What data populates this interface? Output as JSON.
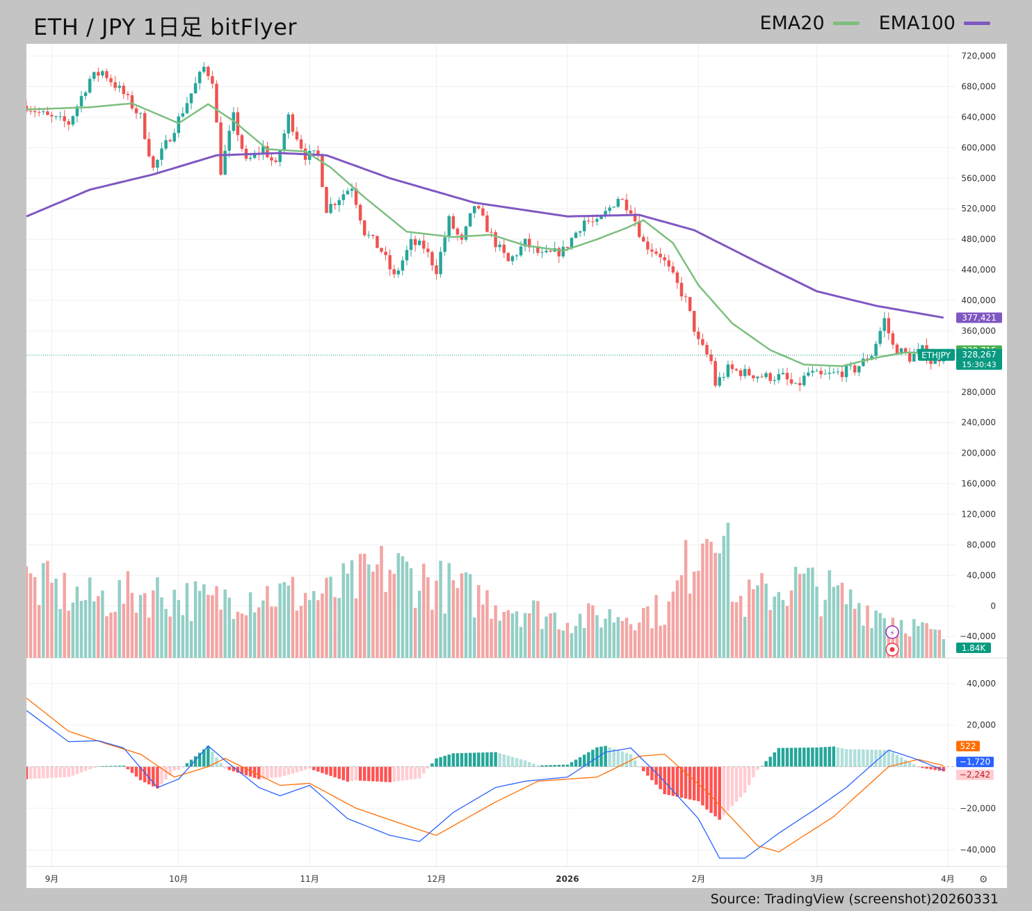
{
  "header": {
    "title": "ETH / JPY 1日足 bitFlyer",
    "legend": [
      {
        "label": "EMA20",
        "color": "#7cbf7f"
      },
      {
        "label": "EMA100",
        "color": "#7f57c2"
      }
    ]
  },
  "footer": {
    "source": "Source: TradingView (screenshot)20260331"
  },
  "colors": {
    "up": "#26a69a",
    "down": "#ef5350",
    "volume_up": "#93cfc6",
    "volume_down": "#f3a5a3",
    "macd": "#2962ff",
    "signal": "#ff6d00"
  },
  "chart_data": [
    {
      "type": "candlestick",
      "symbol": "ETHJPY",
      "x_range": [
        "2025-08-26",
        "2026-04-15"
      ],
      "xaxis_ticks": [
        {
          "date": "2025-09-01",
          "label": "9月"
        },
        {
          "date": "2025-10-01",
          "label": "10月"
        },
        {
          "date": "2025-11-01",
          "label": "11月"
        },
        {
          "date": "2025-12-01",
          "label": "12月"
        },
        {
          "date": "2026-01-01",
          "label": "2026"
        },
        {
          "date": "2026-02-01",
          "label": "2月"
        },
        {
          "date": "2026-03-01",
          "label": "3月"
        },
        {
          "date": "2026-04-01",
          "label": "4月"
        }
      ],
      "yaxis_ticks": [
        720000,
        680000,
        640000,
        600000,
        560000,
        520000,
        480000,
        440000,
        400000,
        360000,
        280000,
        240000,
        200000,
        160000,
        120000,
        80000,
        40000,
        0,
        -40000
      ],
      "ylim": [
        -68000,
        736000
      ],
      "close_keypoints": [
        [
          "2025-08-26",
          655000
        ],
        [
          "2025-08-31",
          640000
        ],
        [
          "2025-09-05",
          632000
        ],
        [
          "2025-09-10",
          690000
        ],
        [
          "2025-09-13",
          700000
        ],
        [
          "2025-09-18",
          670000
        ],
        [
          "2025-09-22",
          640000
        ],
        [
          "2025-09-25",
          572000
        ],
        [
          "2025-09-29",
          615000
        ],
        [
          "2025-10-03",
          660000
        ],
        [
          "2025-10-07",
          705000
        ],
        [
          "2025-10-09",
          690000
        ],
        [
          "2025-10-11",
          570000
        ],
        [
          "2025-10-14",
          640000
        ],
        [
          "2025-10-17",
          580000
        ],
        [
          "2025-10-21",
          600000
        ],
        [
          "2025-10-24",
          575000
        ],
        [
          "2025-10-27",
          640000
        ],
        [
          "2025-10-31",
          590000
        ],
        [
          "2025-11-03",
          590000
        ],
        [
          "2025-11-05",
          520000
        ],
        [
          "2025-11-09",
          540000
        ],
        [
          "2025-11-11",
          550000
        ],
        [
          "2025-11-14",
          490000
        ],
        [
          "2025-11-18",
          465000
        ],
        [
          "2025-11-21",
          430000
        ],
        [
          "2025-11-25",
          475000
        ],
        [
          "2025-11-28",
          470000
        ],
        [
          "2025-12-01",
          440000
        ],
        [
          "2025-12-04",
          505000
        ],
        [
          "2025-12-07",
          475000
        ],
        [
          "2025-12-10",
          525000
        ],
        [
          "2025-12-15",
          475000
        ],
        [
          "2025-12-18",
          450000
        ],
        [
          "2025-12-22",
          475000
        ],
        [
          "2025-12-26",
          458000
        ],
        [
          "2025-12-31",
          465000
        ],
        [
          "2026-01-05",
          505000
        ],
        [
          "2026-01-08",
          500000
        ],
        [
          "2026-01-13",
          535000
        ],
        [
          "2026-01-16",
          520000
        ],
        [
          "2026-01-19",
          475000
        ],
        [
          "2026-01-23",
          460000
        ],
        [
          "2026-01-26",
          430000
        ],
        [
          "2026-01-29",
          400000
        ],
        [
          "2026-02-01",
          345000
        ],
        [
          "2026-02-04",
          320000
        ],
        [
          "2026-02-05",
          290000
        ],
        [
          "2026-02-08",
          310000
        ],
        [
          "2026-02-12",
          305000
        ],
        [
          "2026-02-17",
          300000
        ],
        [
          "2026-02-21",
          300000
        ],
        [
          "2026-02-24",
          285000
        ],
        [
          "2026-02-27",
          305000
        ],
        [
          "2026-03-02",
          300000
        ],
        [
          "2026-03-06",
          305000
        ],
        [
          "2026-03-10",
          310000
        ],
        [
          "2026-03-14",
          330000
        ],
        [
          "2026-03-17",
          375000
        ],
        [
          "2026-03-19",
          340000
        ],
        [
          "2026-03-23",
          325000
        ],
        [
          "2026-03-26",
          335000
        ],
        [
          "2026-03-28",
          320000
        ],
        [
          "2026-03-31",
          328267
        ]
      ],
      "ema20_keypoints": [
        [
          "2025-08-26",
          650000
        ],
        [
          "2025-09-10",
          653000
        ],
        [
          "2025-09-20",
          658000
        ],
        [
          "2025-10-01",
          632000
        ],
        [
          "2025-10-08",
          657000
        ],
        [
          "2025-10-14",
          635000
        ],
        [
          "2025-10-22",
          598000
        ],
        [
          "2025-10-31",
          595000
        ],
        [
          "2025-11-06",
          574000
        ],
        [
          "2025-11-14",
          535000
        ],
        [
          "2025-11-24",
          490000
        ],
        [
          "2025-12-05",
          483000
        ],
        [
          "2025-12-14",
          486000
        ],
        [
          "2025-12-22",
          472000
        ],
        [
          "2025-12-31",
          465000
        ],
        [
          "2026-01-08",
          480000
        ],
        [
          "2026-01-15",
          495000
        ],
        [
          "2026-01-19",
          505000
        ],
        [
          "2026-01-26",
          475000
        ],
        [
          "2026-02-01",
          420000
        ],
        [
          "2026-02-09",
          370000
        ],
        [
          "2026-02-18",
          335000
        ],
        [
          "2026-02-26",
          316000
        ],
        [
          "2026-03-07",
          314000
        ],
        [
          "2026-03-15",
          325000
        ],
        [
          "2026-03-22",
          332000
        ],
        [
          "2026-03-31",
          330715
        ]
      ],
      "ema100_keypoints": [
        [
          "2025-08-26",
          510000
        ],
        [
          "2025-09-10",
          545000
        ],
        [
          "2025-09-25",
          565000
        ],
        [
          "2025-10-10",
          590000
        ],
        [
          "2025-10-25",
          593000
        ],
        [
          "2025-11-05",
          590000
        ],
        [
          "2025-11-20",
          560000
        ],
        [
          "2025-12-10",
          528000
        ],
        [
          "2026-01-01",
          510000
        ],
        [
          "2026-01-18",
          512000
        ],
        [
          "2026-01-31",
          492000
        ],
        [
          "2026-02-15",
          450000
        ],
        [
          "2026-03-01",
          412000
        ],
        [
          "2026-03-15",
          393000
        ],
        [
          "2026-03-31",
          377421
        ]
      ],
      "price_labels": [
        {
          "label": "",
          "value": "377,421",
          "price": 377421,
          "color": "#7e57c2"
        },
        {
          "label": "",
          "value": "330,715",
          "price": 330715,
          "color": "#4caf50"
        },
        {
          "label": "ETHJPY",
          "value": "328,267",
          "sub": "15:30:43",
          "price": 328267,
          "color": "#089981"
        }
      ],
      "volume": {
        "current_label": "1.84K",
        "keypoints": [
          [
            "2025-08-26",
            110000
          ],
          [
            "2025-09-10",
            85000
          ],
          [
            "2025-09-25",
            95000
          ],
          [
            "2025-10-09",
            80000
          ],
          [
            "2025-10-15",
            95000
          ],
          [
            "2025-11-05",
            90000
          ],
          [
            "2025-11-20",
            130000
          ],
          [
            "2025-12-10",
            90000
          ],
          [
            "2026-01-01",
            55000
          ],
          [
            "2026-01-25",
            70000
          ],
          [
            "2026-02-03",
            200000
          ],
          [
            "2026-02-05",
            240000
          ],
          [
            "2026-02-10",
            80000
          ],
          [
            "2026-02-25",
            110000
          ],
          [
            "2026-03-10",
            80000
          ],
          [
            "2026-03-31",
            30000
          ]
        ]
      }
    },
    {
      "type": "line",
      "name": "MACD",
      "ylim": [
        -48000,
        52000
      ],
      "yaxis_ticks": [
        40000,
        20000,
        -20000,
        -40000
      ],
      "labels": [
        {
          "value": "522",
          "y": 522,
          "color": "#ff6d00"
        },
        {
          "value": "−1,720",
          "y": -1720,
          "color": "#2962ff"
        },
        {
          "value": "−2,242",
          "y": -2242,
          "color": "#ffcdd2",
          "text_color": "#b71c1c"
        }
      ],
      "macd_keypoints": [
        [
          "2025-08-26",
          27000
        ],
        [
          "2025-09-05",
          12000
        ],
        [
          "2025-09-12",
          12500
        ],
        [
          "2025-09-18",
          9000
        ],
        [
          "2025-09-26",
          -10000
        ],
        [
          "2025-10-01",
          -6000
        ],
        [
          "2025-10-08",
          10000
        ],
        [
          "2025-10-12",
          3000
        ],
        [
          "2025-10-20",
          -10000
        ],
        [
          "2025-10-25",
          -14000
        ],
        [
          "2025-11-01",
          -9000
        ],
        [
          "2025-11-10",
          -25000
        ],
        [
          "2025-11-20",
          -33000
        ],
        [
          "2025-11-27",
          -36000
        ],
        [
          "2025-12-05",
          -22000
        ],
        [
          "2025-12-15",
          -10000
        ],
        [
          "2025-12-22",
          -7000
        ],
        [
          "2026-01-01",
          -5000
        ],
        [
          "2026-01-10",
          7000
        ],
        [
          "2026-01-16",
          9000
        ],
        [
          "2026-01-23",
          -5000
        ],
        [
          "2026-02-01",
          -25000
        ],
        [
          "2026-02-06",
          -44000
        ],
        [
          "2026-02-12",
          -44000
        ],
        [
          "2026-02-20",
          -32000
        ],
        [
          "2026-03-01",
          -20000
        ],
        [
          "2026-03-08",
          -10000
        ],
        [
          "2026-03-18",
          8000
        ],
        [
          "2026-03-24",
          4000
        ],
        [
          "2026-03-31",
          -1720
        ]
      ],
      "signal_keypoints": [
        [
          "2025-08-26",
          33000
        ],
        [
          "2025-09-05",
          17000
        ],
        [
          "2025-09-14",
          11000
        ],
        [
          "2025-09-22",
          6000
        ],
        [
          "2025-09-30",
          -5000
        ],
        [
          "2025-10-08",
          0
        ],
        [
          "2025-10-12",
          4000
        ],
        [
          "2025-10-25",
          -9000
        ],
        [
          "2025-11-01",
          -8000
        ],
        [
          "2025-11-12",
          -20000
        ],
        [
          "2025-11-25",
          -29000
        ],
        [
          "2025-12-01",
          -33000
        ],
        [
          "2025-12-15",
          -17000
        ],
        [
          "2025-12-25",
          -7000
        ],
        [
          "2026-01-08",
          -5000
        ],
        [
          "2026-01-18",
          5000
        ],
        [
          "2026-01-24",
          6000
        ],
        [
          "2026-02-03",
          -12000
        ],
        [
          "2026-02-15",
          -38000
        ],
        [
          "2026-02-20",
          -41000
        ],
        [
          "2026-03-05",
          -24000
        ],
        [
          "2026-03-18",
          0
        ],
        [
          "2026-03-25",
          3500
        ],
        [
          "2026-03-31",
          522
        ]
      ]
    }
  ]
}
